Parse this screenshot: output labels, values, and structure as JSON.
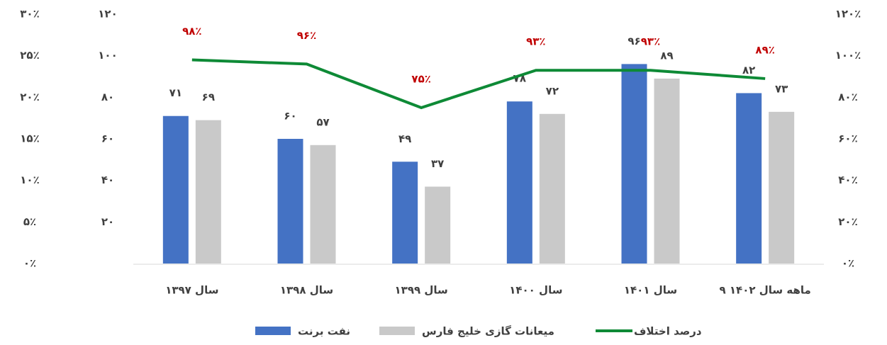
{
  "chart_data": {
    "type": "bar",
    "categories": [
      "سال ۱۳۹۷",
      "سال ۱۳۹۸",
      "سال ۱۳۹۹",
      "سال ۱۴۰۰",
      "سال ۱۴۰۱",
      "۹ ماهه سال ۱۴۰۲"
    ],
    "series": [
      {
        "name": "نفت برنت",
        "color": "#4472c4",
        "values": [
          71,
          60,
          49,
          78,
          96,
          82
        ],
        "value_labels": [
          "۷۱",
          "۶۰",
          "۴۹",
          "۷۸",
          "۹۶",
          "۸۲"
        ]
      },
      {
        "name": "میعانات گازی خلیج فارس",
        "color": "#c9c9c9",
        "values": [
          69,
          57,
          37,
          72,
          89,
          73
        ],
        "value_labels": [
          "۶۹",
          "۵۷",
          "۳۷",
          "۷۲",
          "۸۹",
          "۷۳"
        ]
      },
      {
        "name": "درصد اختلاف",
        "color": "#0e8a36",
        "type": "line",
        "axis": "y2",
        "values": [
          98,
          96,
          75,
          93,
          93,
          89
        ],
        "value_labels": [
          "۹۸٪",
          "۹۶٪",
          "۷۵٪",
          "۹۳٪",
          "۹۳٪",
          "۸۹٪"
        ],
        "label_color": "#c00000"
      }
    ],
    "ylim": [
      0,
      120
    ],
    "yticks": [
      {
        "value": 20,
        "label": "۲۰"
      },
      {
        "value": 40,
        "label": "۴۰"
      },
      {
        "value": 60,
        "label": "۶۰"
      },
      {
        "value": 80,
        "label": "۸۰"
      },
      {
        "value": 100,
        "label": "۱۰۰"
      },
      {
        "value": 120,
        "label": "۱۲۰"
      }
    ],
    "y2lim": [
      0,
      120
    ],
    "y2ticks": [
      {
        "value": 0,
        "label": "۰٪"
      },
      {
        "value": 20,
        "label": "۲۰٪"
      },
      {
        "value": 40,
        "label": "۴۰٪"
      },
      {
        "value": 60,
        "label": "۶۰٪"
      },
      {
        "value": 80,
        "label": "۸۰٪"
      },
      {
        "value": 100,
        "label": "۱۰۰٪"
      },
      {
        "value": 120,
        "label": "۱۲۰٪"
      }
    ],
    "y3lim": [
      0,
      30
    ],
    "y3ticks": [
      {
        "value": 0,
        "label": "۰٪"
      },
      {
        "value": 5,
        "label": "۵٪"
      },
      {
        "value": 10,
        "label": "۱۰٪"
      },
      {
        "value": 15,
        "label": "۱۵٪"
      },
      {
        "value": 20,
        "label": "۲۰٪"
      },
      {
        "value": 25,
        "label": "۲۵٪"
      },
      {
        "value": 30,
        "label": "۳۰٪"
      }
    ]
  }
}
